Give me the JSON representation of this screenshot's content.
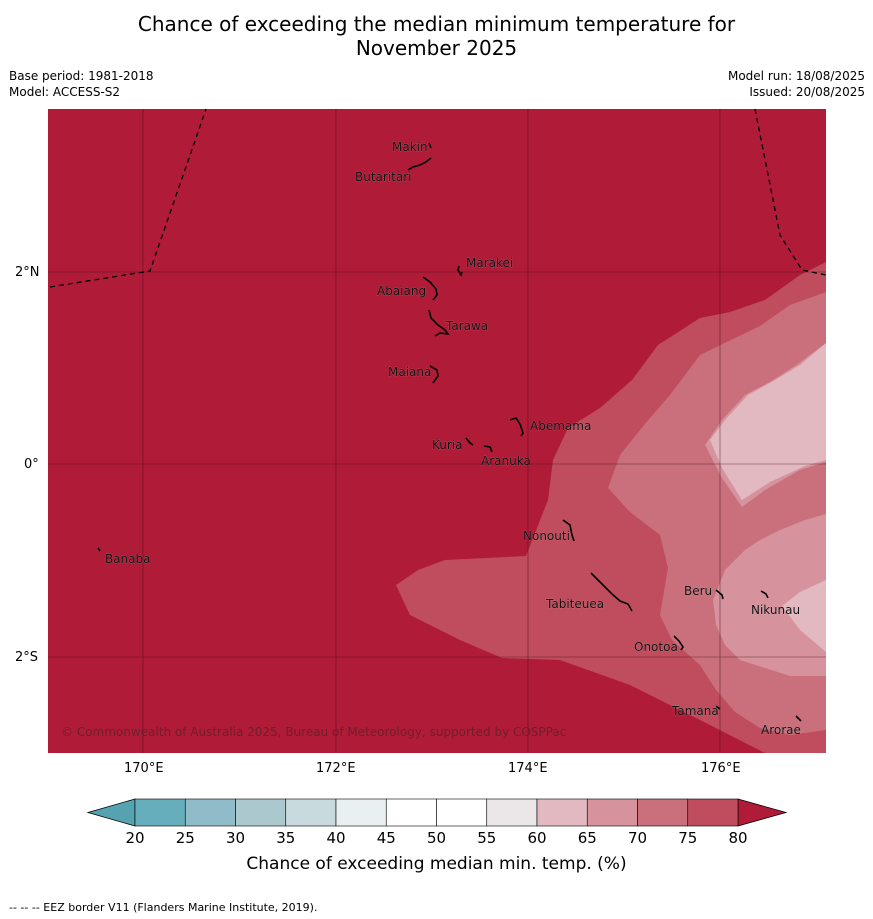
{
  "title_line1": "Chance of exceeding the median minimum temperature for",
  "title_line2": "November 2025",
  "base_period": "Base period: 1981-2018",
  "model": "Model: ACCESS-S2",
  "model_run": "Model run: 18/08/2025",
  "issued": "Issued: 20/08/2025",
  "copyright": "© Commonwealth of Australia 2025, Bureau of Meteorology, supported by COSPPac",
  "lat_labels": [
    "2°N",
    "0°",
    "2°S"
  ],
  "lon_labels": [
    "170°E",
    "172°E",
    "174°E",
    "176°E"
  ],
  "places": [
    "Makin",
    "Butaritari",
    "Marakei",
    "Abaiang",
    "Tarawa",
    "Maiana",
    "Abemama",
    "Kuria",
    "Aranuka",
    "Banaba",
    "Nonouti",
    "Tabiteuea",
    "Beru",
    "Nikunau",
    "Onotoa",
    "Tamana",
    "Arorae"
  ],
  "colorbar": {
    "ticks": [
      "20",
      "25",
      "30",
      "35",
      "40",
      "45",
      "50",
      "55",
      "60",
      "65",
      "70",
      "75",
      "80"
    ],
    "colors": [
      "#67aebc",
      "#8fbcc8",
      "#aac8ce",
      "#c8dade",
      "#e9f0f2",
      "#ffffff",
      "#ffffff",
      "#ebe6e8",
      "#e3b9c1",
      "#d6929d",
      "#c9707c",
      "#bf4d5d"
    ],
    "under_color": "#55a3b1",
    "over_color": "#b01c38",
    "title": "Chance of exceeding median min. temp. (%)"
  },
  "legend_note": "-- -- -- EEZ border V11 (Flanders Marine Institute, 2019)."
}
